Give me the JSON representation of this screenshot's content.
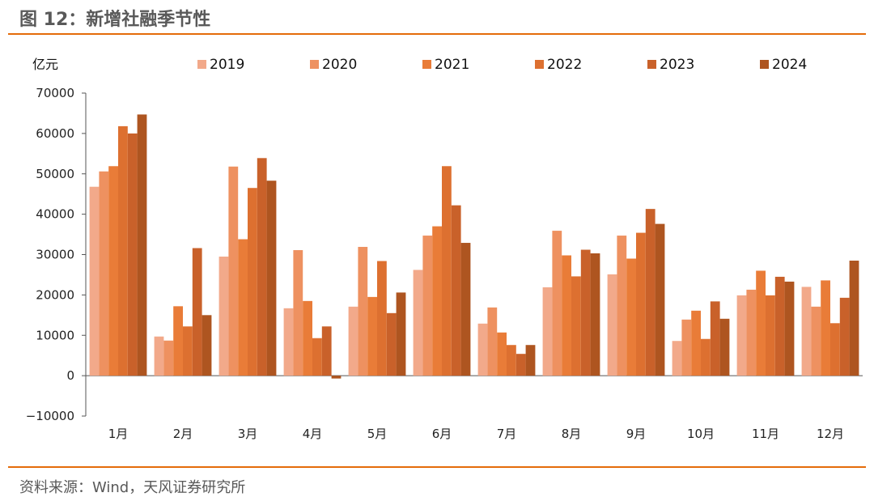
{
  "header": {
    "title": "图 12：新增社融季节性"
  },
  "footer": {
    "source": "资料来源：Wind，天风证券研究所"
  },
  "chart_data": {
    "type": "bar",
    "title": "新增社融季节性",
    "ylabel": "亿元",
    "xlabel": "",
    "ylim": [
      -10000,
      70000
    ],
    "yticks": [
      -10000,
      0,
      10000,
      20000,
      30000,
      40000,
      50000,
      60000,
      70000
    ],
    "grid": false,
    "legend": "top",
    "categories": [
      "1月",
      "2月",
      "3月",
      "4月",
      "5月",
      "6月",
      "7月",
      "8月",
      "9月",
      "10月",
      "11月",
      "12月"
    ],
    "series": [
      {
        "name": "2019",
        "color": "#f2a98a",
        "values": [
          46800,
          9700,
          29500,
          16700,
          17100,
          26200,
          12900,
          21900,
          25100,
          8600,
          19900,
          22000
        ]
      },
      {
        "name": "2020",
        "color": "#ee9160",
        "values": [
          50600,
          8700,
          51800,
          31100,
          31900,
          34700,
          16900,
          35900,
          34700,
          13900,
          21300,
          17100
        ]
      },
      {
        "name": "2021",
        "color": "#e97c38",
        "values": [
          51900,
          17200,
          33800,
          18500,
          19500,
          37000,
          10700,
          29800,
          29000,
          16100,
          26000,
          23600
        ]
      },
      {
        "name": "2022",
        "color": "#dd7030",
        "values": [
          61800,
          12200,
          46500,
          9300,
          28400,
          51900,
          7600,
          24600,
          35400,
          9100,
          19900,
          13000
        ]
      },
      {
        "name": "2023",
        "color": "#c9612a",
        "values": [
          60000,
          31600,
          53900,
          12200,
          15500,
          42200,
          5400,
          31200,
          41300,
          18400,
          24500,
          19300
        ]
      },
      {
        "name": "2024",
        "color": "#ae5520",
        "values": [
          64700,
          15000,
          48300,
          -700,
          20600,
          32900,
          7600,
          30300,
          37600,
          14100,
          23300,
          28500
        ]
      }
    ]
  }
}
